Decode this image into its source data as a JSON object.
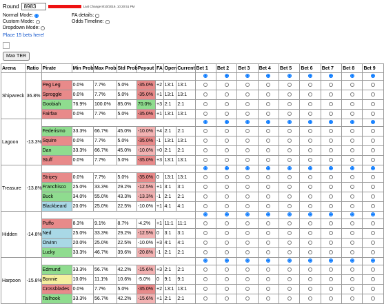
{
  "header": {
    "round_label": "Round",
    "round_value": "8983",
    "last_change": "Last Change 8/10/2019, 10:20:51 PM"
  },
  "options": [
    {
      "label": "Normal Mode:",
      "checked": true
    },
    {
      "label": "FA details:",
      "checked": false
    },
    {
      "label": "Custom Mode:",
      "checked": false
    },
    {
      "label": "Odds Timeline:",
      "checked": false
    },
    {
      "label": "Dropdown Mode:",
      "checked": false
    }
  ],
  "link": "Place 15 bets here!",
  "button": "Max TER",
  "table": {
    "columns": [
      "Arena",
      "Ratio",
      "Pirate",
      "Min Prob",
      "Max Prob",
      "Std Prob",
      "Payout",
      "FA",
      "Open",
      "Current",
      "Bet 1",
      "Bet 2",
      "Bet 3",
      "Bet 4",
      "Bet 5",
      "Bet 6",
      "Bet 7",
      "Bet 8",
      "Bet 9"
    ],
    "arenas": [
      {
        "name": "Shipwreck",
        "ratio": "36.8%",
        "pirates": [
          {
            "name": "Peg Leg",
            "color": "#e88a8a",
            "min": "0.0%",
            "max": "7.7%",
            "std": "5.0%",
            "payout": "-35.0%",
            "payout_color": "#e88a8a",
            "fa": "+2",
            "open": "13:1",
            "current": "13:1"
          },
          {
            "name": "Sproggle",
            "color": "#e88a8a",
            "min": "0.0%",
            "max": "7.7%",
            "std": "5.0%",
            "payout": "-35.0%",
            "payout_color": "#e88a8a",
            "fa": "+1",
            "open": "13:1",
            "current": "13:1"
          },
          {
            "name": "Goobiah",
            "color": "#8fdc8f",
            "min": "76.9%",
            "max": "100.0%",
            "std": "85.0%",
            "payout": "70.0%",
            "payout_color": "#8fdc8f",
            "fa": "+3",
            "open": "2:1",
            "current": "2:1"
          },
          {
            "name": "Fairfax",
            "color": "#e88a8a",
            "min": "0.0%",
            "max": "7.7%",
            "std": "5.0%",
            "payout": "-35.0%",
            "payout_color": "#e88a8a",
            "fa": "+1",
            "open": "13:1",
            "current": "13:1"
          }
        ]
      },
      {
        "name": "Lagoon",
        "ratio": "-13.3%",
        "pirates": [
          {
            "name": "Federismo",
            "color": "#8fdc8f",
            "min": "33.3%",
            "max": "66.7%",
            "std": "45.0%",
            "payout": "-10.0%",
            "payout_color": "#f3b3b3",
            "fa": "+4",
            "open": "2:1",
            "current": "2:1"
          },
          {
            "name": "Squire",
            "color": "#e88a8a",
            "min": "0.0%",
            "max": "7.7%",
            "std": "5.0%",
            "payout": "-35.0%",
            "payout_color": "#e88a8a",
            "fa": "-1",
            "open": "13:1",
            "current": "13:1"
          },
          {
            "name": "Dan",
            "color": "#8fdc8f",
            "min": "33.3%",
            "max": "66.7%",
            "std": "45.0%",
            "payout": "-10.0%",
            "payout_color": "#f3b3b3",
            "fa": "+0",
            "open": "2:1",
            "current": "2:1"
          },
          {
            "name": "Stuff",
            "color": "#e88a8a",
            "min": "0.0%",
            "max": "7.7%",
            "std": "5.0%",
            "payout": "-35.0%",
            "payout_color": "#e88a8a",
            "fa": "+3",
            "open": "13:1",
            "current": "13:1"
          }
        ]
      },
      {
        "name": "Treasure",
        "ratio": "-13.8%",
        "pirates": [
          {
            "name": "Stripey",
            "color": "#e88a8a",
            "min": "0.0%",
            "max": "7.7%",
            "std": "5.0%",
            "payout": "-35.0%",
            "payout_color": "#e88a8a",
            "fa": "0",
            "open": "13:1",
            "current": "13:1"
          },
          {
            "name": "Franchisco",
            "color": "#8fdc8f",
            "min": "25.0%",
            "max": "33.3%",
            "std": "29.2%",
            "payout": "-12.5%",
            "payout_color": "#f3b3b3",
            "fa": "+1",
            "open": "3:1",
            "current": "3:1"
          },
          {
            "name": "Buck",
            "color": "#8fdc8f",
            "min": "34.0%",
            "max": "55.0%",
            "std": "43.3%",
            "payout": "-13.3%",
            "payout_color": "#f3b3b3",
            "fa": "-1",
            "open": "2:1",
            "current": "2:1"
          },
          {
            "name": "Blackbeard",
            "color": "#a9d8e6",
            "min": "20.0%",
            "max": "25.0%",
            "std": "22.5%",
            "payout": "-10.0%",
            "payout_color": "#ffffff",
            "fa": "+1",
            "open": "4:1",
            "current": "4:1"
          }
        ]
      },
      {
        "name": "Hidden",
        "ratio": "-14.8%",
        "pirates": [
          {
            "name": "Puffo",
            "color": "#e88a8a",
            "min": "8.3%",
            "max": "9.1%",
            "std": "8.7%",
            "payout": "-4.2%",
            "payout_color": "#ffffff",
            "fa": "+1",
            "open": "11:1",
            "current": "11:1"
          },
          {
            "name": "Ned",
            "color": "#a9d8e6",
            "min": "25.0%",
            "max": "33.3%",
            "std": "29.2%",
            "payout": "-12.5%",
            "payout_color": "#f3b3b3",
            "fa": "0",
            "open": "3:1",
            "current": "3:1"
          },
          {
            "name": "Orvinn",
            "color": "#a9d8e6",
            "min": "20.0%",
            "max": "25.0%",
            "std": "22.5%",
            "payout": "-10.0%",
            "payout_color": "#ffffff",
            "fa": "+3",
            "open": "4:1",
            "current": "4:1"
          },
          {
            "name": "Lucky",
            "color": "#8fdc8f",
            "min": "33.3%",
            "max": "46.7%",
            "std": "39.6%",
            "payout": "-20.8%",
            "payout_color": "#f3b3b3",
            "fa": "-1",
            "open": "2:1",
            "current": "2:1"
          }
        ]
      },
      {
        "name": "Harpoon",
        "ratio": "-15.8%",
        "pirates": [
          {
            "name": "Edmund",
            "color": "#8fdc8f",
            "min": "33.3%",
            "max": "56.7%",
            "std": "42.2%",
            "payout": "-15.6%",
            "payout_color": "#f3b3b3",
            "fa": "+3",
            "open": "2:1",
            "current": "2:1"
          },
          {
            "name": "Bonnie",
            "color": "#f5f0a0",
            "min": "10.0%",
            "max": "11.1%",
            "std": "10.6%",
            "payout": "-5.0%",
            "payout_color": "#ffffff",
            "fa": "0",
            "open": "9:1",
            "current": "9:1"
          },
          {
            "name": "Crossblades",
            "color": "#e88a8a",
            "min": "0.0%",
            "max": "7.7%",
            "std": "5.0%",
            "payout": "-35.0%",
            "payout_color": "#e88a8a",
            "fa": "+2",
            "open": "13:1",
            "current": "13:1"
          },
          {
            "name": "Tailhook",
            "color": "#8fdc8f",
            "min": "33.3%",
            "max": "56.7%",
            "std": "42.2%",
            "payout": "-15.6%",
            "payout_color": "#f3b3b3",
            "fa": "+1",
            "open": "2:1",
            "current": "2:1"
          }
        ]
      }
    ]
  }
}
